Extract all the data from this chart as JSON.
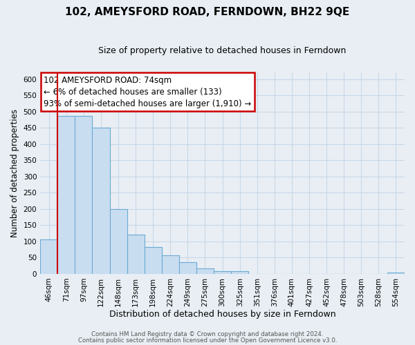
{
  "title": "102, AMEYSFORD ROAD, FERNDOWN, BH22 9QE",
  "subtitle": "Size of property relative to detached houses in Ferndown",
  "xlabel": "Distribution of detached houses by size in Ferndown",
  "ylabel": "Number of detached properties",
  "bar_labels": [
    "46sqm",
    "71sqm",
    "97sqm",
    "122sqm",
    "148sqm",
    "173sqm",
    "198sqm",
    "224sqm",
    "249sqm",
    "275sqm",
    "300sqm",
    "325sqm",
    "351sqm",
    "376sqm",
    "401sqm",
    "427sqm",
    "452sqm",
    "478sqm",
    "503sqm",
    "528sqm",
    "554sqm"
  ],
  "bar_values": [
    107,
    487,
    487,
    450,
    200,
    122,
    82,
    57,
    35,
    16,
    8,
    8,
    0,
    0,
    0,
    0,
    0,
    0,
    0,
    0,
    5
  ],
  "bar_color": "#c9ddf0",
  "bar_edge_color": "#6aaad4",
  "property_line_color": "#cc0000",
  "ylim": [
    0,
    620
  ],
  "yticks": [
    0,
    50,
    100,
    150,
    200,
    250,
    300,
    350,
    400,
    450,
    500,
    550,
    600
  ],
  "annotation_line1": "102 AMEYSFORD ROAD: 74sqm",
  "annotation_line2": "← 6% of detached houses are smaller (133)",
  "annotation_line3": "93% of semi-detached houses are larger (1,910) →",
  "annotation_box_color": "#cc0000",
  "footer_line1": "Contains HM Land Registry data © Crown copyright and database right 2024.",
  "footer_line2": "Contains public sector information licensed under the Open Government Licence v3.0.",
  "bg_color": "#e8eef4",
  "grid_color": "#c8d8e8",
  "title_fontsize": 11,
  "subtitle_fontsize": 9,
  "tick_fontsize": 7.5,
  "ylabel_fontsize": 8.5,
  "xlabel_fontsize": 9
}
